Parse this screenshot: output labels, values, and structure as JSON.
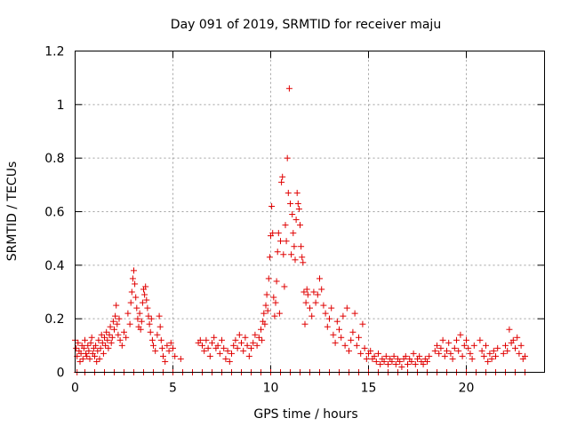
{
  "chart_data": {
    "type": "scatter",
    "title": "Day 091 of 2019, SRMTID for receiver maju",
    "xlabel": "GPS time / hours",
    "ylabel": "SRMTID / TECUs",
    "xlim": [
      0,
      24
    ],
    "ylim": [
      0,
      1.2
    ],
    "xticks": [
      0,
      5,
      10,
      15,
      20
    ],
    "xtick_labels": [
      "0",
      "5",
      "10",
      "15",
      "20"
    ],
    "yticks": [
      0,
      0.2,
      0.4,
      0.6,
      0.8,
      1.0,
      1.2
    ],
    "ytick_labels": [
      "0",
      "0.2",
      "0.4",
      "0.6",
      "0.8",
      "1",
      "1.2"
    ],
    "grid": true,
    "marker": "plus",
    "color": "#e00000",
    "series": [
      {
        "name": "SRMTID",
        "points": [
          [
            0.0,
            0.12
          ],
          [
            0.05,
            0.09
          ],
          [
            0.1,
            0.06
          ],
          [
            0.15,
            0.11
          ],
          [
            0.2,
            0.08
          ],
          [
            0.25,
            0.04
          ],
          [
            0.3,
            0.07
          ],
          [
            0.35,
            0.1
          ],
          [
            0.4,
            0.05
          ],
          [
            0.45,
            0.09
          ],
          [
            0.5,
            0.12
          ],
          [
            0.55,
            0.07
          ],
          [
            0.6,
            0.06
          ],
          [
            0.65,
            0.1
          ],
          [
            0.7,
            0.08
          ],
          [
            0.75,
            0.05
          ],
          [
            0.8,
            0.11
          ],
          [
            0.85,
            0.13
          ],
          [
            0.9,
            0.07
          ],
          [
            0.95,
            0.09
          ],
          [
            1.0,
            0.06
          ],
          [
            1.05,
            0.1
          ],
          [
            1.1,
            0.04
          ],
          [
            1.15,
            0.08
          ],
          [
            1.2,
            0.12
          ],
          [
            1.25,
            0.05
          ],
          [
            1.3,
            0.09
          ],
          [
            1.35,
            0.14
          ],
          [
            1.4,
            0.11
          ],
          [
            1.45,
            0.07
          ],
          [
            1.5,
            0.13
          ],
          [
            1.55,
            0.1
          ],
          [
            1.6,
            0.15
          ],
          [
            1.65,
            0.12
          ],
          [
            1.7,
            0.09
          ],
          [
            1.75,
            0.14
          ],
          [
            1.8,
            0.17
          ],
          [
            1.85,
            0.11
          ],
          [
            1.9,
            0.13
          ],
          [
            1.95,
            0.19
          ],
          [
            2.0,
            0.16
          ],
          [
            2.05,
            0.21
          ],
          [
            2.1,
            0.25
          ],
          [
            2.15,
            0.18
          ],
          [
            2.2,
            0.14
          ],
          [
            2.25,
            0.2
          ],
          [
            2.3,
            0.12
          ],
          [
            2.4,
            0.1
          ],
          [
            2.5,
            0.15
          ],
          [
            2.6,
            0.13
          ],
          [
            2.7,
            0.22
          ],
          [
            2.8,
            0.18
          ],
          [
            2.85,
            0.26
          ],
          [
            2.9,
            0.3
          ],
          [
            2.95,
            0.35
          ],
          [
            3.0,
            0.38
          ],
          [
            3.05,
            0.33
          ],
          [
            3.1,
            0.28
          ],
          [
            3.15,
            0.24
          ],
          [
            3.2,
            0.2
          ],
          [
            3.25,
            0.17
          ],
          [
            3.3,
            0.22
          ],
          [
            3.35,
            0.16
          ],
          [
            3.4,
            0.19
          ],
          [
            3.45,
            0.26
          ],
          [
            3.5,
            0.31
          ],
          [
            3.55,
            0.29
          ],
          [
            3.6,
            0.32
          ],
          [
            3.65,
            0.27
          ],
          [
            3.7,
            0.24
          ],
          [
            3.75,
            0.21
          ],
          [
            3.8,
            0.18
          ],
          [
            3.85,
            0.15
          ],
          [
            3.9,
            0.2
          ],
          [
            3.95,
            0.12
          ],
          [
            4.0,
            0.1
          ],
          [
            4.1,
            0.08
          ],
          [
            4.2,
            0.14
          ],
          [
            4.3,
            0.21
          ],
          [
            4.35,
            0.17
          ],
          [
            4.4,
            0.12
          ],
          [
            4.45,
            0.09
          ],
          [
            4.5,
            0.06
          ],
          [
            4.6,
            0.04
          ],
          [
            4.7,
            0.1
          ],
          [
            4.8,
            0.08
          ],
          [
            4.9,
            0.11
          ],
          [
            5.0,
            0.09
          ],
          [
            5.1,
            0.06
          ],
          [
            5.4,
            0.05
          ],
          [
            6.3,
            0.11
          ],
          [
            6.4,
            0.12
          ],
          [
            6.5,
            0.1
          ],
          [
            6.6,
            0.08
          ],
          [
            6.7,
            0.12
          ],
          [
            6.8,
            0.09
          ],
          [
            6.9,
            0.06
          ],
          [
            7.0,
            0.11
          ],
          [
            7.1,
            0.13
          ],
          [
            7.2,
            0.09
          ],
          [
            7.3,
            0.1
          ],
          [
            7.4,
            0.07
          ],
          [
            7.5,
            0.12
          ],
          [
            7.6,
            0.09
          ],
          [
            7.7,
            0.05
          ],
          [
            7.8,
            0.08
          ],
          [
            7.9,
            0.04
          ],
          [
            8.0,
            0.07
          ],
          [
            8.1,
            0.1
          ],
          [
            8.2,
            0.12
          ],
          [
            8.3,
            0.09
          ],
          [
            8.4,
            0.14
          ],
          [
            8.5,
            0.11
          ],
          [
            8.6,
            0.08
          ],
          [
            8.7,
            0.13
          ],
          [
            8.8,
            0.1
          ],
          [
            8.9,
            0.06
          ],
          [
            9.0,
            0.09
          ],
          [
            9.1,
            0.11
          ],
          [
            9.2,
            0.14
          ],
          [
            9.3,
            0.1
          ],
          [
            9.4,
            0.13
          ],
          [
            9.5,
            0.16
          ],
          [
            9.55,
            0.12
          ],
          [
            9.6,
            0.19
          ],
          [
            9.65,
            0.22
          ],
          [
            9.7,
            0.18
          ],
          [
            9.75,
            0.25
          ],
          [
            9.8,
            0.29
          ],
          [
            9.85,
            0.23
          ],
          [
            9.9,
            0.35
          ],
          [
            9.95,
            0.43
          ],
          [
            10.0,
            0.51
          ],
          [
            10.05,
            0.62
          ],
          [
            10.1,
            0.52
          ],
          [
            10.15,
            0.28
          ],
          [
            10.2,
            0.21
          ],
          [
            10.25,
            0.26
          ],
          [
            10.3,
            0.34
          ],
          [
            10.35,
            0.45
          ],
          [
            10.4,
            0.52
          ],
          [
            10.45,
            0.22
          ],
          [
            10.5,
            0.49
          ],
          [
            10.55,
            0.71
          ],
          [
            10.6,
            0.73
          ],
          [
            10.65,
            0.44
          ],
          [
            10.7,
            0.32
          ],
          [
            10.75,
            0.55
          ],
          [
            10.8,
            0.49
          ],
          [
            10.85,
            0.8
          ],
          [
            10.9,
            0.67
          ],
          [
            10.95,
            1.06
          ],
          [
            11.0,
            0.63
          ],
          [
            11.05,
            0.44
          ],
          [
            11.1,
            0.59
          ],
          [
            11.15,
            0.52
          ],
          [
            11.2,
            0.47
          ],
          [
            11.25,
            0.42
          ],
          [
            11.3,
            0.57
          ],
          [
            11.35,
            0.67
          ],
          [
            11.4,
            0.63
          ],
          [
            11.45,
            0.61
          ],
          [
            11.5,
            0.55
          ],
          [
            11.55,
            0.47
          ],
          [
            11.6,
            0.43
          ],
          [
            11.65,
            0.41
          ],
          [
            11.7,
            0.3
          ],
          [
            11.75,
            0.18
          ],
          [
            11.8,
            0.26
          ],
          [
            11.85,
            0.31
          ],
          [
            11.9,
            0.29
          ],
          [
            12.0,
            0.24
          ],
          [
            12.1,
            0.21
          ],
          [
            12.2,
            0.3
          ],
          [
            12.3,
            0.26
          ],
          [
            12.4,
            0.29
          ],
          [
            12.5,
            0.35
          ],
          [
            12.6,
            0.31
          ],
          [
            12.7,
            0.25
          ],
          [
            12.8,
            0.22
          ],
          [
            12.9,
            0.17
          ],
          [
            13.0,
            0.2
          ],
          [
            13.1,
            0.24
          ],
          [
            13.2,
            0.14
          ],
          [
            13.3,
            0.11
          ],
          [
            13.4,
            0.19
          ],
          [
            13.5,
            0.16
          ],
          [
            13.6,
            0.13
          ],
          [
            13.7,
            0.21
          ],
          [
            13.8,
            0.1
          ],
          [
            13.9,
            0.24
          ],
          [
            14.0,
            0.08
          ],
          [
            14.1,
            0.12
          ],
          [
            14.2,
            0.15
          ],
          [
            14.3,
            0.22
          ],
          [
            14.4,
            0.1
          ],
          [
            14.5,
            0.13
          ],
          [
            14.6,
            0.07
          ],
          [
            14.7,
            0.18
          ],
          [
            14.8,
            0.09
          ],
          [
            14.9,
            0.05
          ],
          [
            15.0,
            0.07
          ],
          [
            15.1,
            0.08
          ],
          [
            15.2,
            0.05
          ],
          [
            15.3,
            0.06
          ],
          [
            15.4,
            0.04
          ],
          [
            15.5,
            0.07
          ],
          [
            15.6,
            0.03
          ],
          [
            15.7,
            0.05
          ],
          [
            15.8,
            0.04
          ],
          [
            15.9,
            0.06
          ],
          [
            16.0,
            0.03
          ],
          [
            16.1,
            0.05
          ],
          [
            16.2,
            0.04
          ],
          [
            16.3,
            0.06
          ],
          [
            16.4,
            0.03
          ],
          [
            16.5,
            0.05
          ],
          [
            16.6,
            0.04
          ],
          [
            16.7,
            0.02
          ],
          [
            16.8,
            0.05
          ],
          [
            16.9,
            0.06
          ],
          [
            17.0,
            0.03
          ],
          [
            17.1,
            0.05
          ],
          [
            17.2,
            0.04
          ],
          [
            17.3,
            0.07
          ],
          [
            17.4,
            0.03
          ],
          [
            17.5,
            0.05
          ],
          [
            17.6,
            0.06
          ],
          [
            17.7,
            0.04
          ],
          [
            17.8,
            0.03
          ],
          [
            17.9,
            0.05
          ],
          [
            18.0,
            0.04
          ],
          [
            18.1,
            0.06
          ],
          [
            18.4,
            0.08
          ],
          [
            18.5,
            0.1
          ],
          [
            18.6,
            0.07
          ],
          [
            18.7,
            0.09
          ],
          [
            18.8,
            0.12
          ],
          [
            18.9,
            0.06
          ],
          [
            19.0,
            0.08
          ],
          [
            19.1,
            0.11
          ],
          [
            19.2,
            0.07
          ],
          [
            19.3,
            0.05
          ],
          [
            19.4,
            0.09
          ],
          [
            19.5,
            0.12
          ],
          [
            19.6,
            0.08
          ],
          [
            19.7,
            0.14
          ],
          [
            19.8,
            0.06
          ],
          [
            19.9,
            0.1
          ],
          [
            20.0,
            0.12
          ],
          [
            20.1,
            0.09
          ],
          [
            20.2,
            0.07
          ],
          [
            20.3,
            0.05
          ],
          [
            20.4,
            0.1
          ],
          [
            20.7,
            0.12
          ],
          [
            20.8,
            0.08
          ],
          [
            20.9,
            0.06
          ],
          [
            21.0,
            0.1
          ],
          [
            21.1,
            0.04
          ],
          [
            21.2,
            0.07
          ],
          [
            21.3,
            0.05
          ],
          [
            21.4,
            0.08
          ],
          [
            21.5,
            0.06
          ],
          [
            21.6,
            0.09
          ],
          [
            21.9,
            0.07
          ],
          [
            22.0,
            0.1
          ],
          [
            22.1,
            0.08
          ],
          [
            22.2,
            0.16
          ],
          [
            22.3,
            0.11
          ],
          [
            22.4,
            0.12
          ],
          [
            22.5,
            0.09
          ],
          [
            22.6,
            0.13
          ],
          [
            22.7,
            0.07
          ],
          [
            22.8,
            0.1
          ],
          [
            22.9,
            0.05
          ],
          [
            23.0,
            0.06
          ],
          [
            0.1,
            0.0
          ],
          [
            0.5,
            0.0
          ],
          [
            1.0,
            0.0
          ],
          [
            1.5,
            0.0
          ],
          [
            2.0,
            0.0
          ],
          [
            2.5,
            0.0
          ],
          [
            3.0,
            0.0
          ],
          [
            3.5,
            0.0
          ],
          [
            4.0,
            0.0
          ],
          [
            4.5,
            0.0
          ],
          [
            5.0,
            0.0
          ],
          [
            5.5,
            0.0
          ],
          [
            6.0,
            0.0
          ],
          [
            6.5,
            0.0
          ],
          [
            7.0,
            0.0
          ],
          [
            7.5,
            0.0
          ],
          [
            8.0,
            0.0
          ],
          [
            8.5,
            0.0
          ],
          [
            9.0,
            0.0
          ],
          [
            9.5,
            0.0
          ],
          [
            10.0,
            0.0
          ],
          [
            10.5,
            0.0
          ],
          [
            11.0,
            0.0
          ],
          [
            11.5,
            0.0
          ],
          [
            12.0,
            0.0
          ],
          [
            12.5,
            0.0
          ],
          [
            13.0,
            0.0
          ],
          [
            13.5,
            0.0
          ],
          [
            14.0,
            0.0
          ],
          [
            14.5,
            0.0
          ],
          [
            15.0,
            0.0
          ],
          [
            15.5,
            0.0
          ],
          [
            16.0,
            0.0
          ],
          [
            16.5,
            0.0
          ],
          [
            17.0,
            0.0
          ],
          [
            17.5,
            0.0
          ],
          [
            18.0,
            0.0
          ],
          [
            18.5,
            0.0
          ],
          [
            19.0,
            0.0
          ],
          [
            19.5,
            0.0
          ],
          [
            20.0,
            0.0
          ],
          [
            20.5,
            0.0
          ],
          [
            21.0,
            0.0
          ],
          [
            21.5,
            0.0
          ],
          [
            22.0,
            0.0
          ],
          [
            22.5,
            0.0
          ],
          [
            23.0,
            0.0
          ]
        ]
      }
    ]
  }
}
